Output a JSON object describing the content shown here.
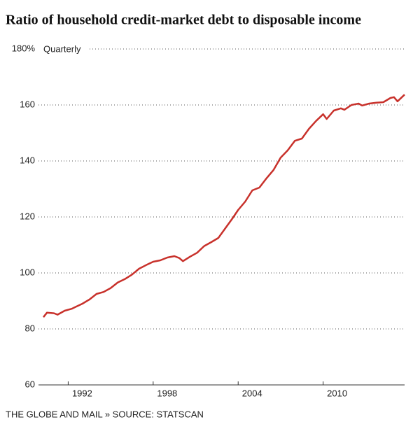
{
  "chart_data": {
    "type": "line",
    "title": "Ratio of household credit-market debt to disposable income",
    "subtitle": "Quarterly",
    "source": "THE GLOBE AND MAIL » SOURCE: STATSCAN",
    "x": [
      1990.25,
      1990.5,
      1991,
      1991.25,
      1991.75,
      1992.25,
      1992.5,
      1993,
      1993.5,
      1994,
      1994.5,
      1995,
      1995.5,
      1996,
      1996.5,
      1997,
      1997.5,
      1998,
      1998.5,
      1999,
      1999.5,
      1999.85,
      2000.1,
      2000.6,
      2001.1,
      2001.6,
      2002.1,
      2002.6,
      2003.1,
      2003.6,
      2004,
      2004.5,
      2005,
      2005.5,
      2006,
      2006.5,
      2007,
      2007.5,
      2008,
      2008.5,
      2009,
      2009.5,
      2010,
      2010.25,
      2010.75,
      2011.25,
      2011.5,
      2012,
      2012.5,
      2012.75,
      2013.25,
      2013.75,
      2014.25,
      2014.75,
      2015,
      2015.25,
      2015.75
    ],
    "series": [
      {
        "name": "Debt to disposable income",
        "color": "#c8312b",
        "values": [
          84.2,
          85.8,
          85.6,
          85.1,
          86.5,
          87.2,
          87.8,
          89,
          90.5,
          92.5,
          93.2,
          94.6,
          96.6,
          97.8,
          99.4,
          101.5,
          102.8,
          104,
          104.5,
          105.5,
          106,
          105.3,
          104.2,
          105.8,
          107.2,
          109.6,
          111,
          112.5,
          116,
          119.5,
          122.5,
          125.5,
          129.5,
          130.5,
          133.8,
          136.8,
          141.2,
          143.8,
          147.2,
          148,
          151.5,
          154.3,
          156.7,
          155,
          158,
          158.8,
          158.3,
          160,
          160.5,
          159.8,
          160.5,
          160.8,
          161,
          162.5,
          162.8,
          161.3,
          163.7
        ]
      }
    ],
    "xlim": [
      1990.25,
      2015.75
    ],
    "xticks": [
      1992,
      1998,
      2004,
      2010
    ],
    "ylim": [
      60,
      180
    ],
    "yticks": [
      60,
      80,
      100,
      120,
      140,
      160,
      {
        "value": 180,
        "label": "180%"
      }
    ],
    "grid": true
  }
}
